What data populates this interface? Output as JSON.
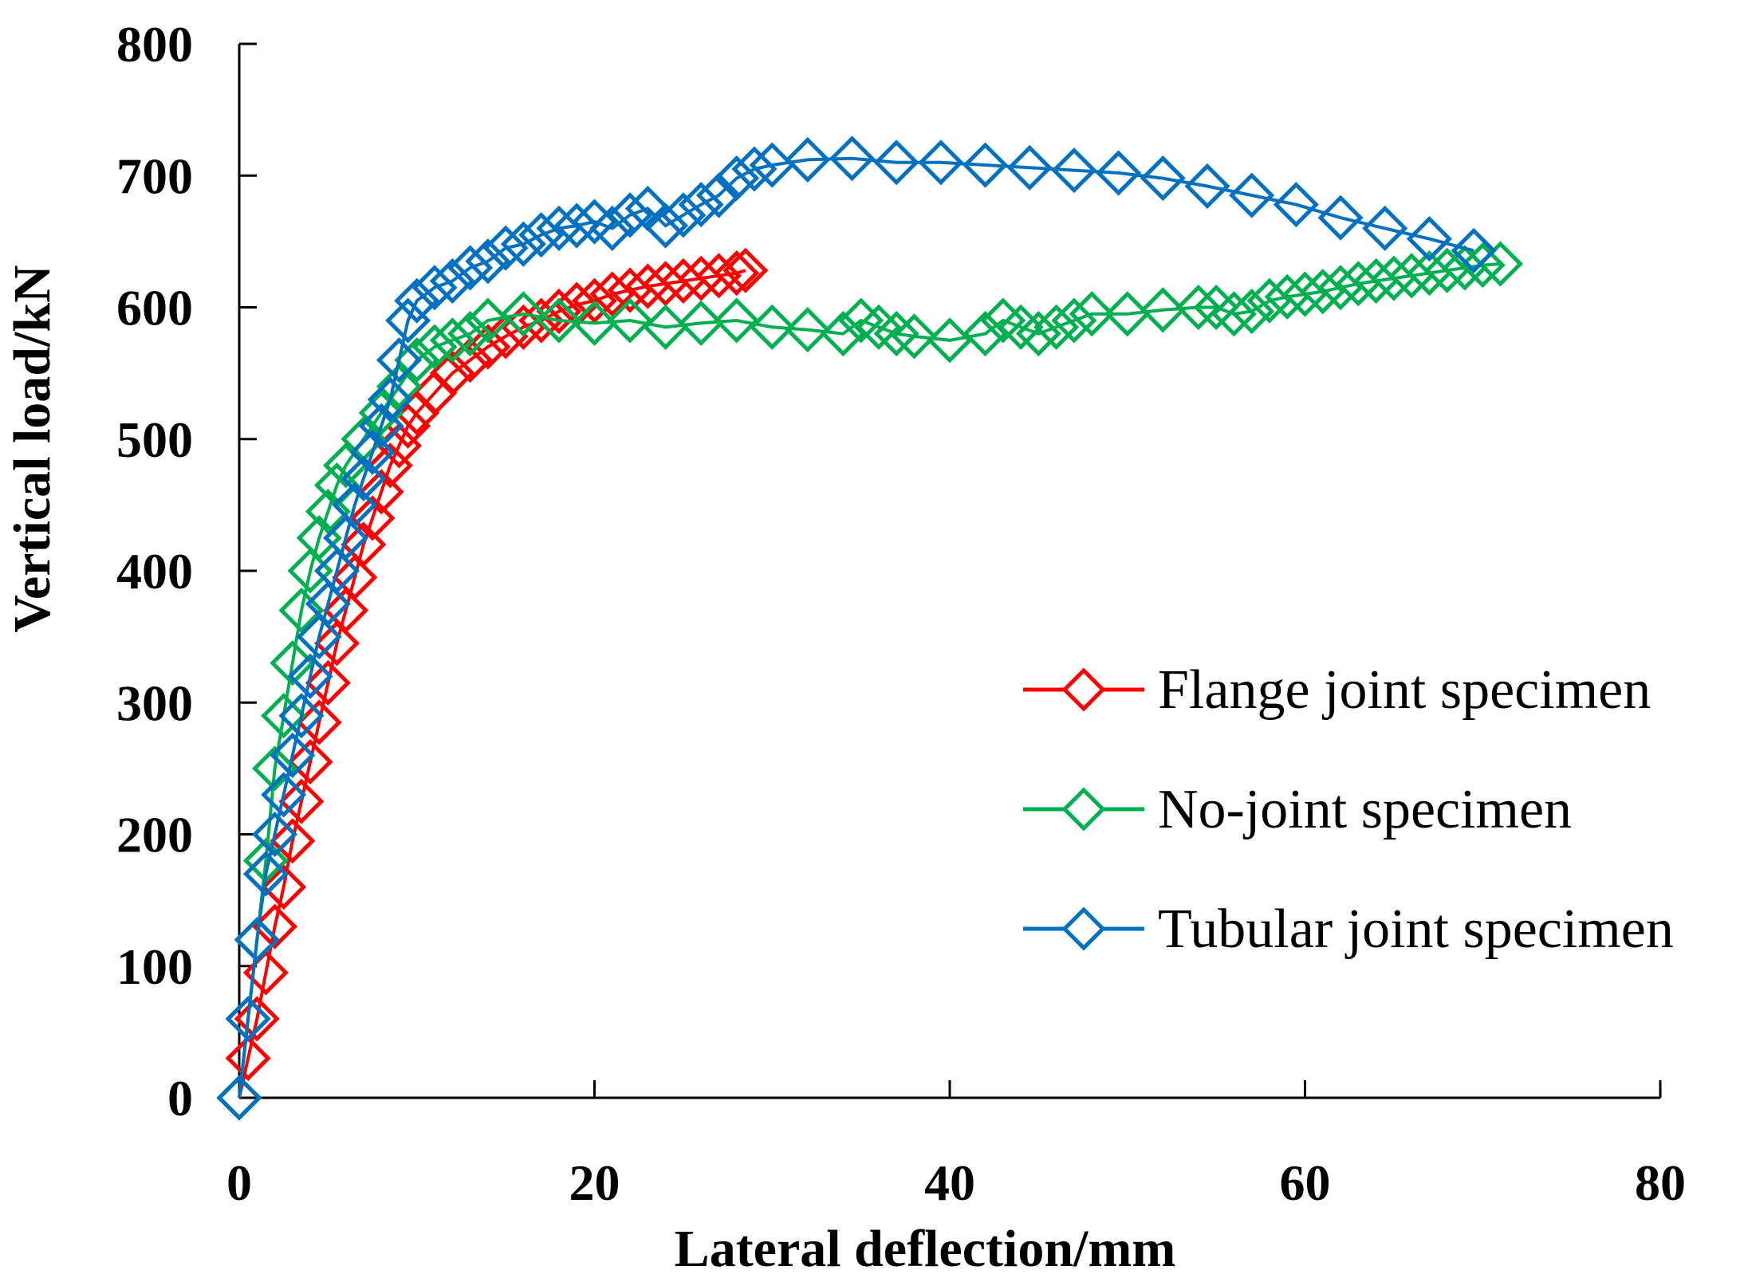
{
  "chart_data": {
    "type": "scatter",
    "title": "",
    "xlabel": "Lateral deflection/mm",
    "ylabel": "Vertical load/kN",
    "xlim": [
      0,
      80
    ],
    "ylim": [
      0,
      800
    ],
    "xticks": [
      "0",
      "20",
      "40",
      "60",
      "80"
    ],
    "yticks": [
      "0",
      "100",
      "200",
      "300",
      "400",
      "500",
      "600",
      "700",
      "800"
    ],
    "grid": false,
    "legend_position": "right",
    "series": [
      {
        "name": "Flange joint specimen",
        "color": "#ff0000",
        "x": [
          0.0,
          0.5,
          1.0,
          1.5,
          2.0,
          2.5,
          3.0,
          3.5,
          4.0,
          4.5,
          5.0,
          5.5,
          6.0,
          6.5,
          7.0,
          7.5,
          8.0,
          8.5,
          9.0,
          9.5,
          10.0,
          11.0,
          12.0,
          13.0,
          14.0,
          15.0,
          16.0,
          17.0,
          18.0,
          19.0,
          20.0,
          21.0,
          22.0,
          23.0,
          24.0,
          25.0,
          26.0,
          27.0,
          28.0,
          28.5
        ],
        "y": [
          0,
          30,
          60,
          95,
          130,
          160,
          195,
          225,
          255,
          285,
          315,
          345,
          370,
          395,
          420,
          440,
          460,
          480,
          495,
          510,
          520,
          535,
          550,
          560,
          570,
          578,
          585,
          590,
          597,
          602,
          605,
          610,
          613,
          616,
          618,
          620,
          622,
          624,
          626,
          628
        ]
      },
      {
        "name": "No-joint specimen",
        "color": "#00b050",
        "x": [
          0.0,
          0.5,
          1.0,
          1.5,
          2.0,
          2.5,
          3.0,
          3.5,
          4.0,
          4.5,
          5.0,
          5.5,
          6.0,
          7.0,
          8.0,
          9.0,
          10.0,
          11.0,
          12.0,
          13.0,
          14.0,
          16.0,
          18.0,
          20.0,
          22.0,
          24.0,
          26.0,
          28.0,
          30.0,
          32.0,
          34.0,
          35.0,
          36.0,
          37.0,
          38.0,
          40.0,
          42.0,
          43.0,
          44.0,
          45.0,
          46.0,
          47.0,
          48.0,
          50.0,
          52.0,
          54.0,
          55.0,
          56.0,
          57.0,
          58.0,
          59.0,
          60.0,
          61.0,
          62.0,
          63.0,
          64.0,
          65.0,
          66.0,
          67.0,
          68.0,
          69.0,
          70.0,
          71.0
        ],
        "y": [
          0,
          60,
          120,
          180,
          250,
          290,
          330,
          370,
          400,
          425,
          445,
          465,
          480,
          500,
          520,
          540,
          560,
          570,
          575,
          580,
          590,
          595,
          590,
          588,
          590,
          585,
          588,
          590,
          585,
          583,
          580,
          590,
          585,
          580,
          578,
          575,
          580,
          590,
          585,
          580,
          585,
          590,
          595,
          595,
          598,
          600,
          600,
          595,
          597,
          605,
          608,
          610,
          612,
          615,
          618,
          620,
          622,
          624,
          626,
          628,
          630,
          632,
          633
        ]
      },
      {
        "name": "Tubular joint specimen",
        "color": "#0070c0",
        "x": [
          0.0,
          0.5,
          1.0,
          1.5,
          2.0,
          2.5,
          3.0,
          3.5,
          4.0,
          4.5,
          5.0,
          5.5,
          6.0,
          6.5,
          7.0,
          7.5,
          8.0,
          8.5,
          9.0,
          9.5,
          10.0,
          11.0,
          12.0,
          13.0,
          14.0,
          15.0,
          16.0,
          17.0,
          18.0,
          19.0,
          20.0,
          21.0,
          22.0,
          23.0,
          24.0,
          25.0,
          26.0,
          27.0,
          28.0,
          29.0,
          30.0,
          32.0,
          34.5,
          37.0,
          39.5,
          42.0,
          44.5,
          47.0,
          49.5,
          52.0,
          54.5,
          57.0,
          59.5,
          62.0,
          64.5,
          67.0,
          69.5
        ],
        "y": [
          0,
          60,
          120,
          170,
          200,
          230,
          260,
          290,
          320,
          350,
          375,
          400,
          425,
          450,
          470,
          490,
          510,
          530,
          560,
          590,
          605,
          615,
          620,
          630,
          635,
          645,
          648,
          655,
          660,
          662,
          665,
          660,
          670,
          675,
          662,
          670,
          678,
          685,
          698,
          705,
          708,
          712,
          713,
          710,
          710,
          708,
          706,
          704,
          702,
          698,
          692,
          685,
          678,
          668,
          660,
          652,
          643
        ]
      }
    ]
  }
}
